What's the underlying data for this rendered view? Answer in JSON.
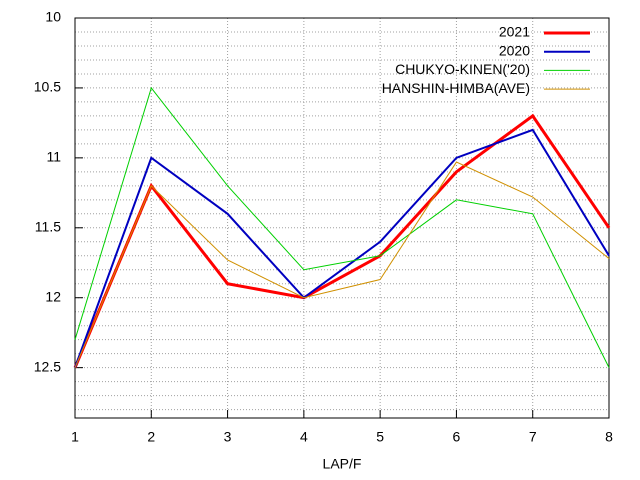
{
  "chart_data": {
    "type": "line",
    "x_label": "LAP/F",
    "x": [
      1,
      2,
      3,
      4,
      5,
      6,
      7,
      8
    ],
    "xlim": [
      1,
      8
    ],
    "xticks": [
      1,
      2,
      3,
      4,
      5,
      6,
      7,
      8
    ],
    "ylim": [
      10,
      12.86
    ],
    "y_reversed": true,
    "yticks": [
      10,
      10.5,
      11,
      11.5,
      12,
      12.5
    ],
    "yminorticks": [
      10.1,
      10.2,
      10.3,
      10.4,
      10.6,
      10.7,
      10.8,
      10.9,
      11.1,
      11.2,
      11.3,
      11.4,
      11.6,
      11.7,
      11.8,
      11.9,
      12.1,
      12.2,
      12.3,
      12.4,
      12.6,
      12.7,
      12.8
    ],
    "grid": true,
    "legend": "top-right",
    "series": [
      {
        "name": "2021",
        "color": "#ff0000",
        "width": 3,
        "values": [
          12.5,
          11.2,
          11.9,
          12.0,
          11.7,
          11.1,
          10.7,
          11.5
        ]
      },
      {
        "name": "2020",
        "color": "#0000c0",
        "width": 2,
        "values": [
          12.5,
          11.0,
          11.4,
          12.0,
          11.6,
          11.0,
          10.8,
          11.7
        ]
      },
      {
        "name": "CHUKYO-KINEN('20)",
        "color": "#00d000",
        "width": 1,
        "values": [
          12.3,
          10.5,
          11.2,
          11.8,
          11.7,
          11.3,
          11.4,
          12.5
        ]
      },
      {
        "name": "HANSHIN-HIMBA(AVE)",
        "color": "#d09000",
        "width": 1,
        "values": [
          12.5,
          11.2,
          11.73,
          12.0,
          11.87,
          11.03,
          11.28,
          11.72
        ]
      }
    ]
  }
}
